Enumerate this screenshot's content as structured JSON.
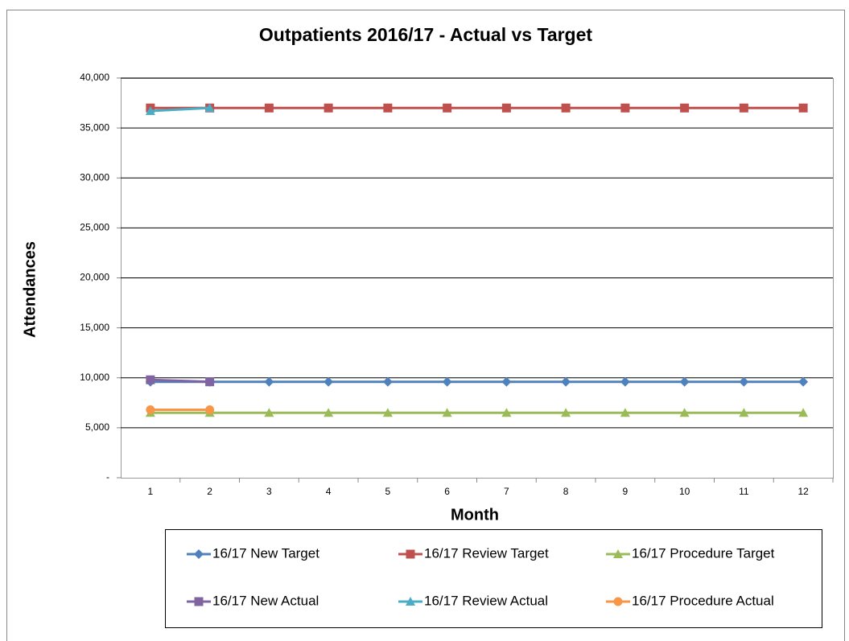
{
  "chart_data": {
    "type": "line",
    "title": "Outpatients 2016/17 - Actual vs Target",
    "x_label": "Month",
    "y_label": "Attendances",
    "categories": [
      "1",
      "2",
      "3",
      "4",
      "5",
      "6",
      "7",
      "8",
      "9",
      "10",
      "11",
      "12"
    ],
    "ylim": [
      0,
      40000
    ],
    "yticks": [
      {
        "value": 0,
        "label": "-"
      },
      {
        "value": 5000,
        "label": "5,000"
      },
      {
        "value": 10000,
        "label": "10,000"
      },
      {
        "value": 15000,
        "label": "15,000"
      },
      {
        "value": 20000,
        "label": "20,000"
      },
      {
        "value": 25000,
        "label": "25,000"
      },
      {
        "value": 30000,
        "label": "30,000"
      },
      {
        "value": 35000,
        "label": "35,000"
      },
      {
        "value": 40000,
        "label": "40,000"
      }
    ],
    "grid": true,
    "legend": "bottom",
    "series": [
      {
        "name": "16/17 New Target",
        "color": "#4f81bd",
        "marker": "diamond",
        "values": [
          9600,
          9600,
          9600,
          9600,
          9600,
          9600,
          9600,
          9600,
          9600,
          9600,
          9600,
          9600
        ]
      },
      {
        "name": "16/17 Review Target",
        "color": "#c0504d",
        "marker": "square",
        "values": [
          37000,
          37000,
          37000,
          37000,
          37000,
          37000,
          37000,
          37000,
          37000,
          37000,
          37000,
          37000
        ]
      },
      {
        "name": "16/17 Procedure Target",
        "color": "#9bbb59",
        "marker": "triangle",
        "values": [
          6500,
          6500,
          6500,
          6500,
          6500,
          6500,
          6500,
          6500,
          6500,
          6500,
          6500,
          6500
        ]
      },
      {
        "name": "16/17 New Actual",
        "color": "#8064a2",
        "marker": "square",
        "values": [
          9800,
          9600,
          null,
          null,
          null,
          null,
          null,
          null,
          null,
          null,
          null,
          null
        ]
      },
      {
        "name": "16/17 Review Actual",
        "color": "#4bacc6",
        "marker": "triangle",
        "values": [
          36700,
          37000,
          null,
          null,
          null,
          null,
          null,
          null,
          null,
          null,
          null,
          null
        ]
      },
      {
        "name": "16/17 Procedure Actual",
        "color": "#f79646",
        "marker": "circle",
        "values": [
          6800,
          6800,
          null,
          null,
          null,
          null,
          null,
          null,
          null,
          null,
          null,
          null
        ]
      }
    ]
  }
}
